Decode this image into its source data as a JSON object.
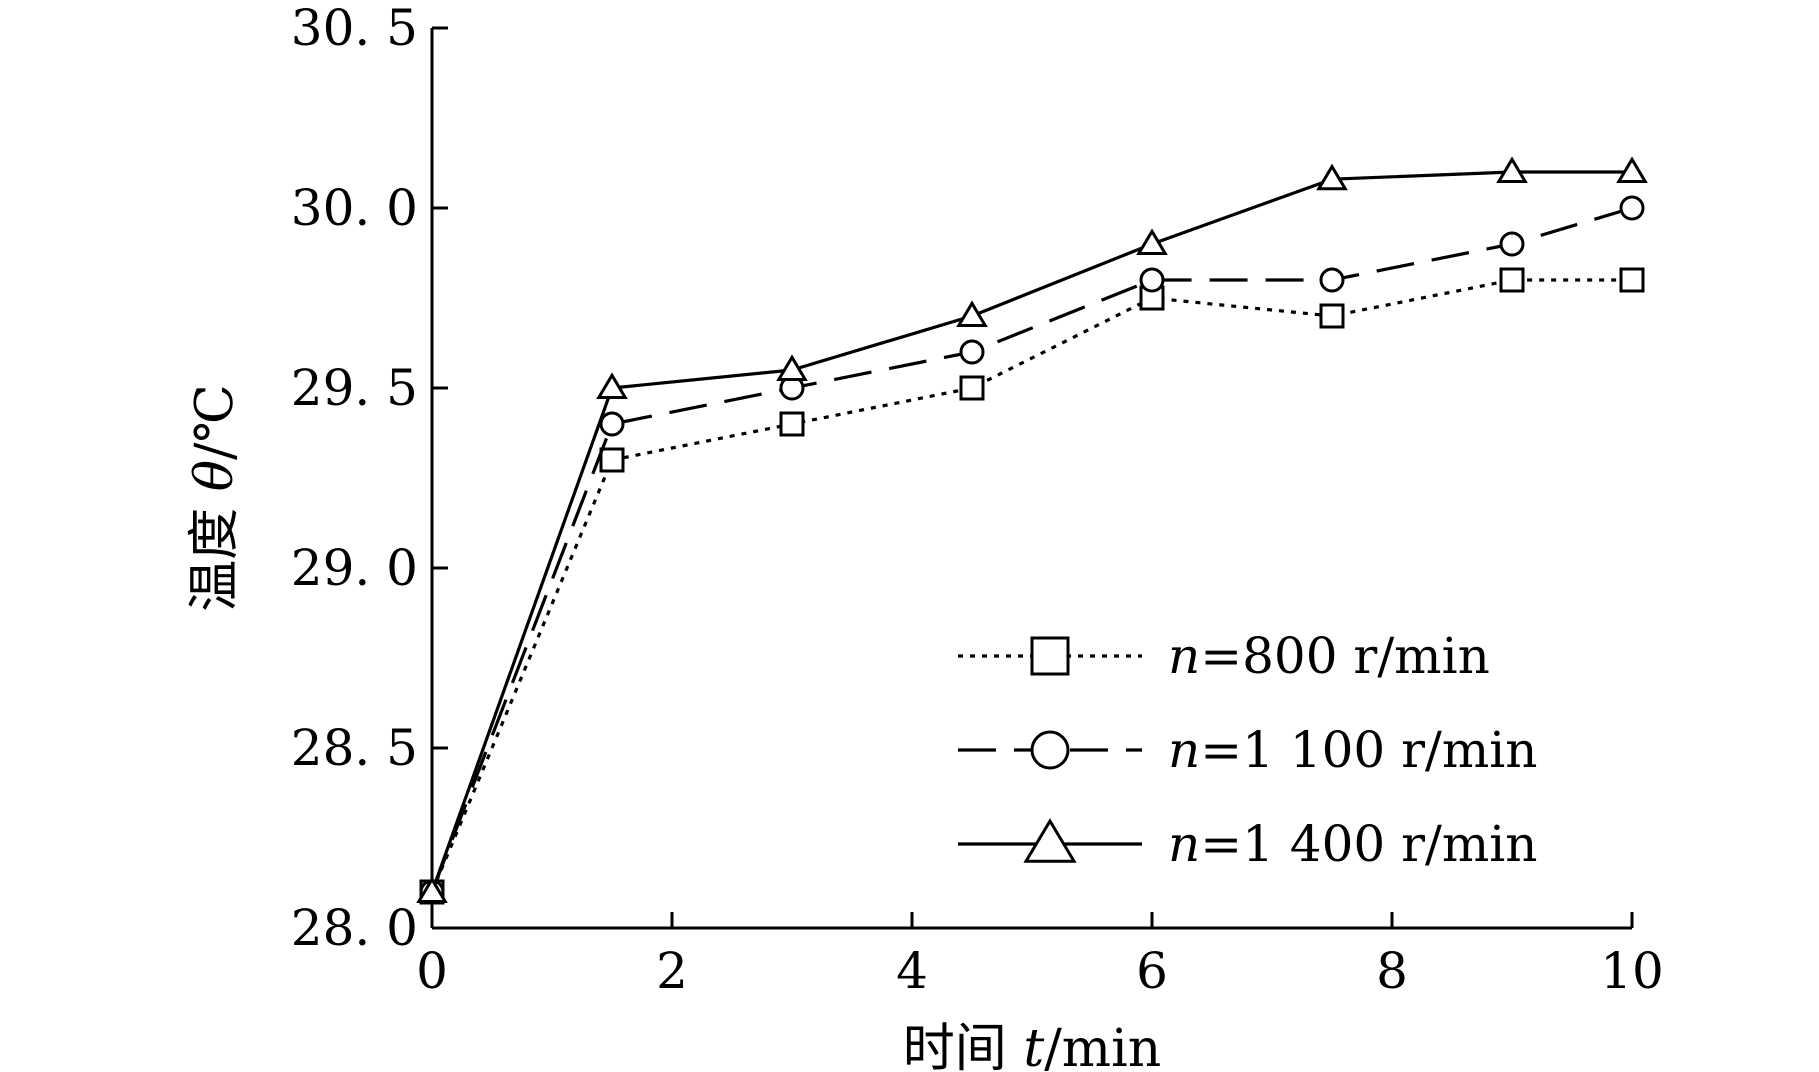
{
  "chart_data": {
    "type": "line",
    "xlabel_prefix": "时间 ",
    "xlabel_var": "t",
    "xlabel_unit": "/min",
    "ylabel_prefix": "温度 ",
    "ylabel_var": "θ",
    "ylabel_unit": "/℃",
    "xlim": [
      0,
      10
    ],
    "ylim": [
      28.0,
      30.5
    ],
    "xticks": [
      0,
      2,
      4,
      6,
      8,
      10
    ],
    "xtick_labels": [
      "0",
      "2",
      "4",
      "6",
      "8",
      "10"
    ],
    "yticks": [
      28.0,
      28.5,
      29.0,
      29.5,
      30.0,
      30.5
    ],
    "ytick_labels": [
      "28. 0",
      "28. 5",
      "29. 0",
      "29. 5",
      "30. 0",
      "30. 5"
    ],
    "legend_position": "bottom-right",
    "grid": false,
    "series": [
      {
        "label_var": "n",
        "label_rest": "=800 r/min",
        "marker": "square",
        "line_style": "dotted",
        "x": [
          0,
          1.5,
          3,
          4.5,
          6,
          7.5,
          9,
          10
        ],
        "y": [
          28.1,
          29.3,
          29.4,
          29.5,
          29.75,
          29.7,
          29.8,
          29.8
        ]
      },
      {
        "label_var": "n",
        "label_rest": "=1 100 r/min",
        "marker": "circle",
        "line_style": "dashed",
        "x": [
          0,
          1.5,
          3,
          4.5,
          6,
          7.5,
          9,
          10
        ],
        "y": [
          28.1,
          29.4,
          29.5,
          29.6,
          29.8,
          29.8,
          29.9,
          30.0
        ]
      },
      {
        "label_var": "n",
        "label_rest": "=1 400 r/min",
        "marker": "triangle",
        "line_style": "solid",
        "x": [
          0,
          1.5,
          3,
          4.5,
          6,
          7.5,
          9,
          10
        ],
        "y": [
          28.1,
          29.5,
          29.55,
          29.7,
          29.9,
          30.08,
          30.1,
          30.1
        ]
      }
    ]
  }
}
